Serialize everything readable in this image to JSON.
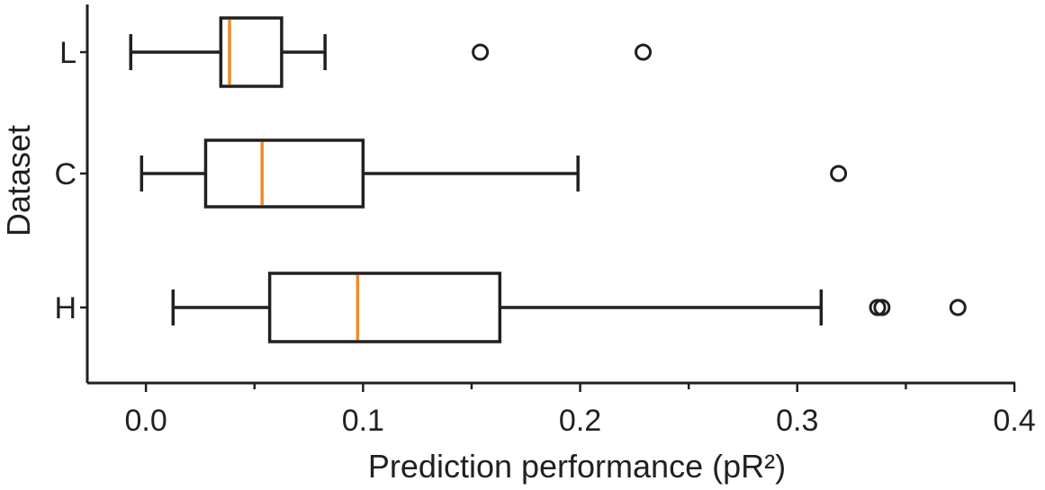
{
  "chart_data": {
    "type": "box",
    "orientation": "horizontal",
    "xlabel": "Prediction performance (pR²)",
    "ylabel": "Dataset",
    "xlim": [
      -0.027,
      0.4
    ],
    "xticks": [
      0.0,
      0.1,
      0.2,
      0.3,
      0.4
    ],
    "xtick_labels": [
      "0.0",
      "0.1",
      "0.2",
      "0.3",
      "0.4"
    ],
    "minor_xticks": [
      0.05,
      0.15,
      0.25,
      0.35
    ],
    "categories": [
      "L",
      "C",
      "H"
    ],
    "boxes": [
      {
        "label": "L",
        "whisker_low": -0.007,
        "q1": 0.0345,
        "median": 0.0385,
        "q3": 0.0625,
        "whisker_high": 0.0825,
        "outliers": [
          0.154,
          0.229
        ]
      },
      {
        "label": "C",
        "whisker_low": -0.002,
        "q1": 0.0275,
        "median": 0.0535,
        "q3": 0.1,
        "whisker_high": 0.199,
        "outliers": [
          0.319
        ]
      },
      {
        "label": "H",
        "whisker_low": 0.0125,
        "q1": 0.057,
        "median": 0.0975,
        "q3": 0.163,
        "whisker_high": 0.311,
        "outliers": [
          0.337,
          0.339,
          0.374
        ]
      }
    ],
    "colors": {
      "axis": "#231f20",
      "box": "#231f20",
      "median": "#f08a2d"
    },
    "grid": false,
    "legend": "none"
  }
}
